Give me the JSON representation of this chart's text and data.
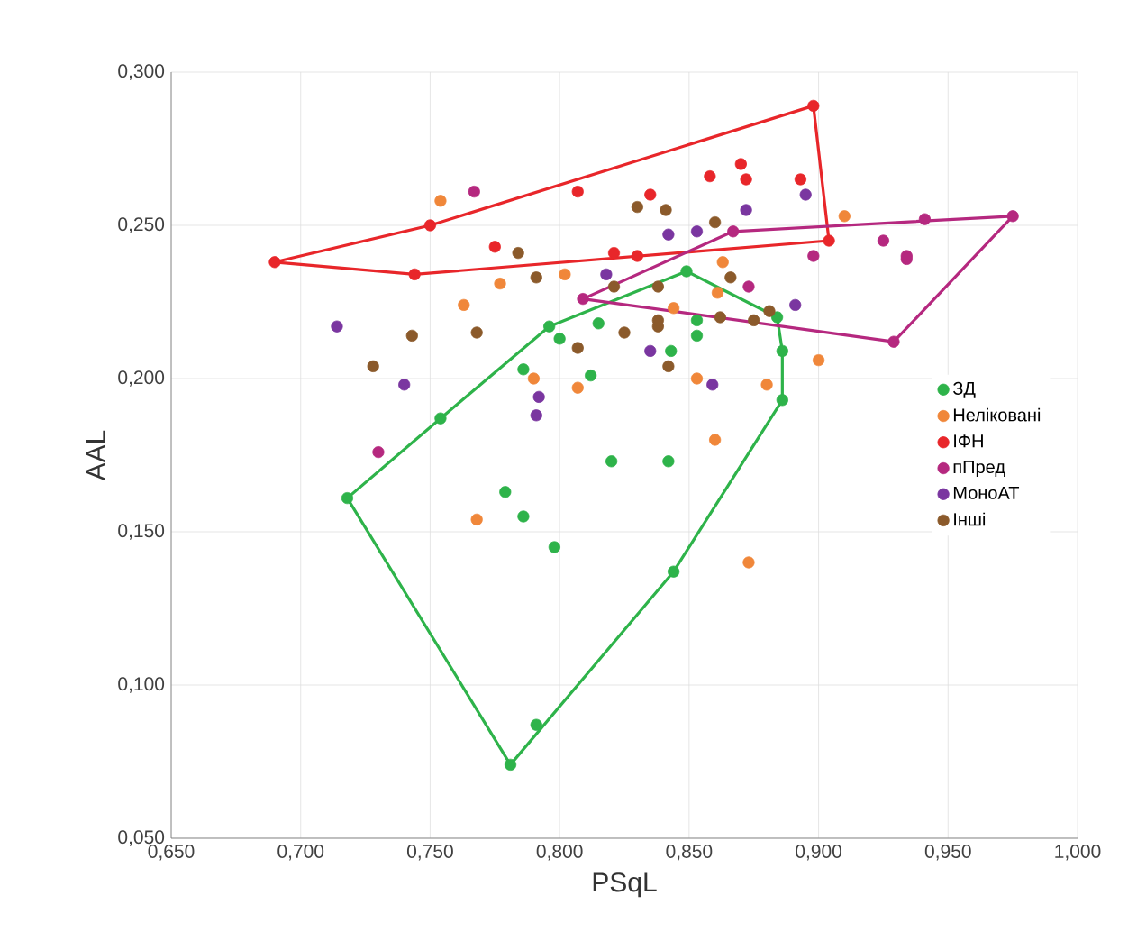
{
  "chart_data": {
    "type": "scatter",
    "xlabel": "PSqL",
    "ylabel": "AAL",
    "xlim": [
      0.65,
      1.0
    ],
    "ylim": [
      0.05,
      0.3
    ],
    "xticks": [
      {
        "value": 0.65,
        "label": "0,650"
      },
      {
        "value": 0.7,
        "label": "0,700"
      },
      {
        "value": 0.75,
        "label": "0,750"
      },
      {
        "value": 0.8,
        "label": "0,800"
      },
      {
        "value": 0.85,
        "label": "0,850"
      },
      {
        "value": 0.9,
        "label": "0,900"
      },
      {
        "value": 0.95,
        "label": "0,950"
      },
      {
        "value": 1.0,
        "label": "1,000"
      }
    ],
    "yticks": [
      {
        "value": 0.05,
        "label": "0,050"
      },
      {
        "value": 0.1,
        "label": "0,100"
      },
      {
        "value": 0.15,
        "label": "0,150"
      },
      {
        "value": 0.2,
        "label": "0,200"
      },
      {
        "value": 0.25,
        "label": "0,250"
      },
      {
        "value": 0.3,
        "label": "0,300"
      }
    ],
    "grid": true,
    "legend": "right",
    "marker": "circle",
    "series": [
      {
        "name": "ЗД",
        "color": "#2eb34a",
        "x": [
          0.718,
          0.754,
          0.796,
          0.8,
          0.786,
          0.812,
          0.815,
          0.849,
          0.853,
          0.853,
          0.843,
          0.884,
          0.886,
          0.886,
          0.82,
          0.842,
          0.779,
          0.786,
          0.798,
          0.844,
          0.791,
          0.781
        ],
        "values": [
          0.161,
          0.187,
          0.217,
          0.213,
          0.203,
          0.201,
          0.218,
          0.235,
          0.219,
          0.214,
          0.209,
          0.22,
          0.209,
          0.193,
          0.173,
          0.173,
          0.163,
          0.155,
          0.145,
          0.137,
          0.087,
          0.074
        ]
      },
      {
        "name": "Неліковані",
        "color": "#f0873a",
        "x": [
          0.754,
          0.777,
          0.763,
          0.802,
          0.79,
          0.807,
          0.91,
          0.863,
          0.844,
          0.861,
          0.9,
          0.853,
          0.88,
          0.86,
          0.768,
          0.873
        ],
        "values": [
          0.258,
          0.231,
          0.224,
          0.234,
          0.2,
          0.197,
          0.253,
          0.238,
          0.223,
          0.228,
          0.206,
          0.2,
          0.198,
          0.18,
          0.154,
          0.14
        ]
      },
      {
        "name": "ІФН",
        "color": "#e8262a",
        "x": [
          0.69,
          0.75,
          0.744,
          0.898,
          0.904,
          0.807,
          0.775,
          0.821,
          0.83,
          0.835,
          0.858,
          0.87,
          0.872,
          0.893
        ],
        "values": [
          0.238,
          0.25,
          0.234,
          0.289,
          0.245,
          0.261,
          0.243,
          0.241,
          0.24,
          0.26,
          0.266,
          0.27,
          0.265,
          0.265
        ]
      },
      {
        "name": "пПред",
        "color": "#b5287f",
        "x": [
          0.767,
          0.73,
          0.809,
          0.867,
          0.941,
          0.975,
          0.929,
          0.925,
          0.934,
          0.934,
          0.898,
          0.873
        ],
        "values": [
          0.261,
          0.176,
          0.226,
          0.248,
          0.252,
          0.253,
          0.212,
          0.245,
          0.24,
          0.239,
          0.24,
          0.23
        ]
      },
      {
        "name": "МоноАТ",
        "color": "#7a36a0",
        "x": [
          0.714,
          0.74,
          0.792,
          0.791,
          0.818,
          0.835,
          0.842,
          0.853,
          0.872,
          0.895,
          0.891,
          0.859
        ],
        "values": [
          0.217,
          0.198,
          0.194,
          0.188,
          0.234,
          0.209,
          0.247,
          0.248,
          0.255,
          0.26,
          0.224,
          0.198
        ]
      },
      {
        "name": "Інші",
        "color": "#8b5a2b",
        "x": [
          0.83,
          0.784,
          0.791,
          0.821,
          0.743,
          0.768,
          0.728,
          0.807,
          0.825,
          0.838,
          0.841,
          0.86,
          0.866,
          0.838,
          0.838,
          0.862,
          0.875,
          0.881,
          0.842
        ],
        "values": [
          0.256,
          0.241,
          0.233,
          0.23,
          0.214,
          0.215,
          0.204,
          0.21,
          0.215,
          0.217,
          0.255,
          0.251,
          0.233,
          0.23,
          0.219,
          0.22,
          0.219,
          0.222,
          0.204
        ]
      },
      {
        "type": "line",
        "marker": "none",
        "color": "#2eb34a",
        "x": [
          0.718,
          0.754,
          0.796,
          0.849,
          0.884,
          0.886,
          0.886
        ],
        "values": [
          0.161,
          0.187,
          0.217,
          0.235,
          0.22,
          0.209,
          0.193
        ]
      },
      {
        "type": "line",
        "marker": "none",
        "color": "#2eb34a",
        "x": [
          0.718,
          0.781,
          0.844,
          0.886
        ],
        "values": [
          0.161,
          0.074,
          0.137,
          0.193
        ]
      },
      {
        "type": "line",
        "marker": "none",
        "color": "#e8262a",
        "x": [
          0.69,
          0.75,
          0.898,
          0.904
        ],
        "values": [
          0.238,
          0.25,
          0.289,
          0.245
        ]
      },
      {
        "type": "line",
        "marker": "none",
        "color": "#e8262a",
        "x": [
          0.69,
          0.744,
          0.904
        ],
        "values": [
          0.238,
          0.234,
          0.245
        ]
      },
      {
        "type": "line",
        "marker": "none",
        "color": "#b5287f",
        "x": [
          0.809,
          0.867,
          0.975
        ],
        "values": [
          0.226,
          0.248,
          0.253
        ]
      },
      {
        "type": "line",
        "marker": "none",
        "color": "#b5287f",
        "x": [
          0.809,
          0.929,
          0.975
        ],
        "values": [
          0.226,
          0.212,
          0.253
        ]
      }
    ]
  }
}
